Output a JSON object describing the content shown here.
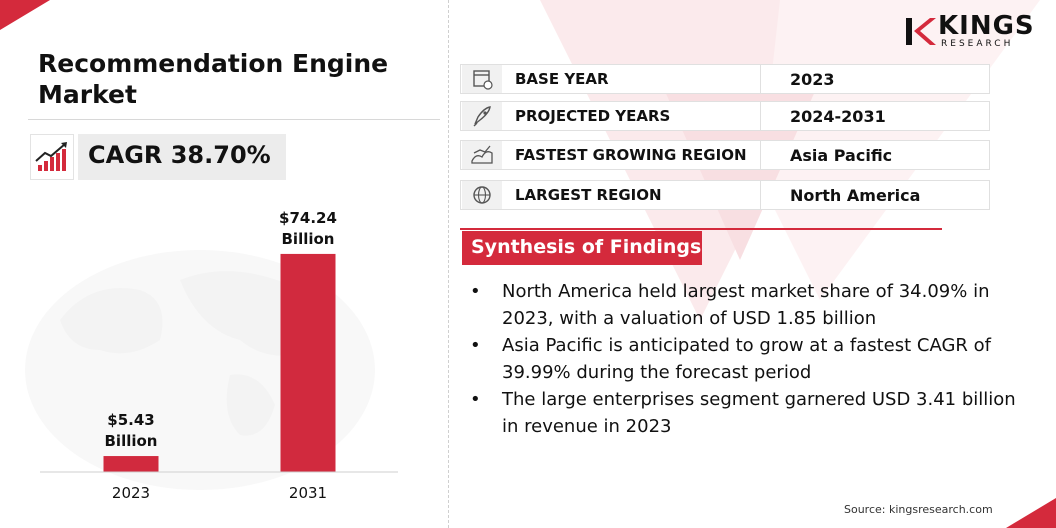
{
  "title": "Recommendation Engine Market",
  "cagr": "CAGR 38.70%",
  "logo": {
    "name": "KINGS",
    "sub": "RESEARCH"
  },
  "info_rows": [
    {
      "icon": "calendar-icon",
      "label": "BASE YEAR",
      "value": "2023"
    },
    {
      "icon": "rocket-icon",
      "label": "PROJECTED YEARS",
      "value": "2024-2031"
    },
    {
      "icon": "growth-map-icon",
      "label": "FASTEST GROWING REGION",
      "value": "Asia Pacific"
    },
    {
      "icon": "globe-icon",
      "label": "LARGEST REGION",
      "value": "North America"
    }
  ],
  "synthesis": {
    "heading": "Synthesis of Findings",
    "bullets": [
      "North America held largest market share of 34.09% in 2023, with a valuation of USD 1.85 billion",
      "Asia Pacific is anticipated to grow at a fastest CAGR of 39.99% during the forecast period",
      "The large enterprises segment garnered USD 3.41 billion in revenue in 2023"
    ]
  },
  "source": "Source: kingsresearch.com",
  "colors": {
    "accent": "#d42a3c",
    "bar": "#d12a3e",
    "box": "#ececec"
  },
  "chart_data": {
    "type": "bar",
    "categories": [
      "2023",
      "2031"
    ],
    "values": [
      5.43,
      74.24
    ],
    "value_labels": [
      [
        "$5.43",
        "Billion"
      ],
      [
        "$74.24",
        "Billion"
      ]
    ],
    "ylim": [
      0,
      80
    ]
  }
}
